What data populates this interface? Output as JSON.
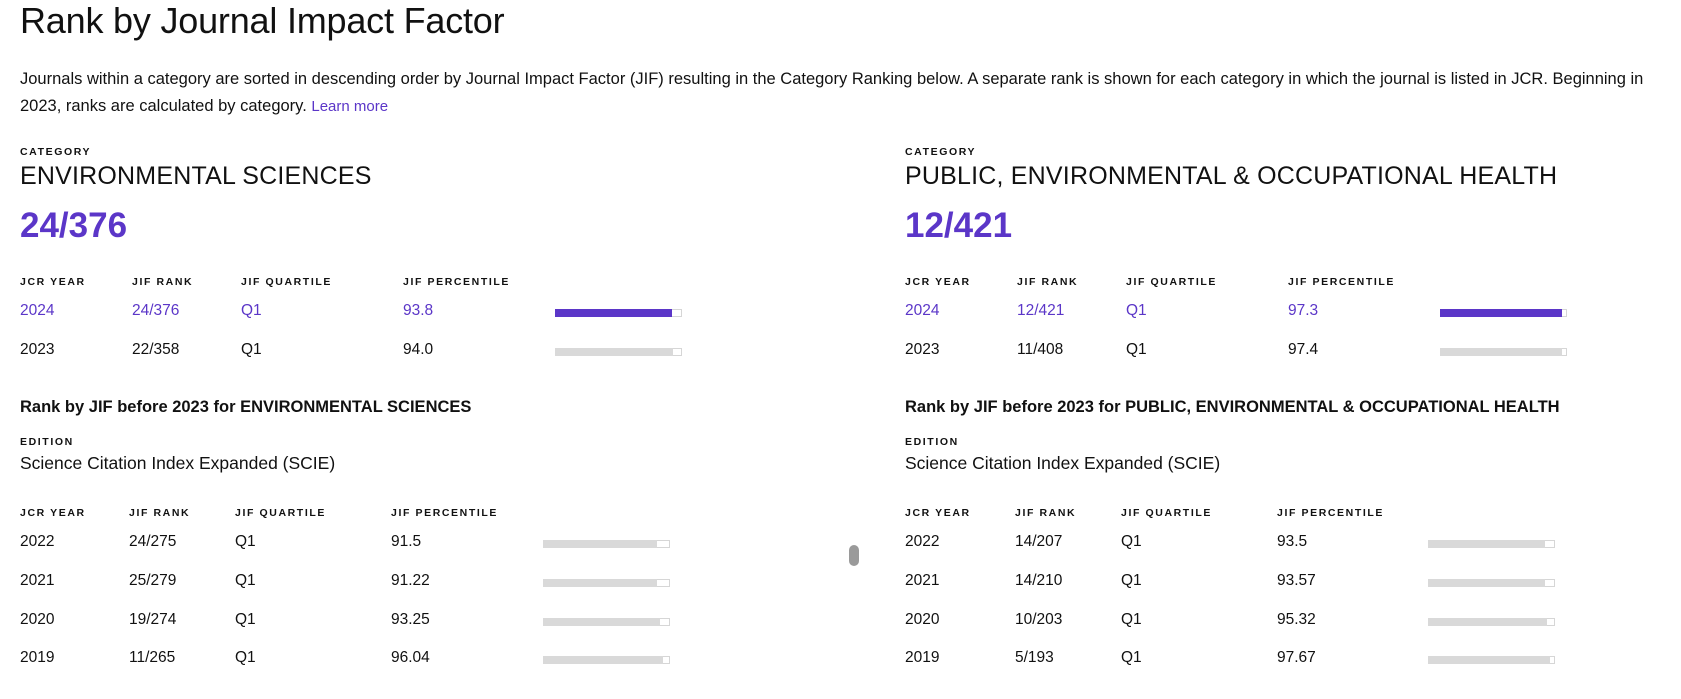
{
  "page": {
    "title": "Rank by Journal Impact Factor",
    "intro_text": "Journals within a category are sorted in descending order by Journal Impact Factor (JIF) resulting in the Category Ranking below. A separate rank is shown for each category in which the journal is listed in JCR. Beginning in 2023, ranks are calculated by category.",
    "learn_more": "Learn more"
  },
  "colors": {
    "accent": "#5b36c8",
    "bar_track": "#d9d9d9",
    "text": "#111111"
  },
  "labels": {
    "category": "CATEGORY",
    "edition": "EDITION",
    "jcr_year": "JCR YEAR",
    "jif_rank": "JIF RANK",
    "jif_quartile": "JIF QUARTILE",
    "jif_percentile": "JIF PERCENTILE"
  },
  "categories": [
    {
      "name": "ENVIRONMENTAL SCIENCES",
      "rank": "24/376",
      "current_rows": [
        {
          "year": "2024",
          "rank": "24/376",
          "quartile": "Q1",
          "percentile": "93.8",
          "pct": 93.8,
          "current": true
        },
        {
          "year": "2023",
          "rank": "22/358",
          "quartile": "Q1",
          "percentile": "94.0",
          "pct": 94.0,
          "current": false
        }
      ],
      "before_heading": "Rank by JIF before 2023 for ENVIRONMENTAL SCIENCES",
      "edition": "Science Citation Index Expanded (SCIE)",
      "before_rows": [
        {
          "year": "2022",
          "rank": "24/275",
          "quartile": "Q1",
          "percentile": "91.5",
          "pct": 91.5
        },
        {
          "year": "2021",
          "rank": "25/279",
          "quartile": "Q1",
          "percentile": "91.22",
          "pct": 91.22
        },
        {
          "year": "2020",
          "rank": "19/274",
          "quartile": "Q1",
          "percentile": "93.25",
          "pct": 93.25
        },
        {
          "year": "2019",
          "rank": "11/265",
          "quartile": "Q1",
          "percentile": "96.04",
          "pct": 96.04
        }
      ]
    },
    {
      "name": "PUBLIC, ENVIRONMENTAL & OCCUPATIONAL HEALTH",
      "rank": "12/421",
      "current_rows": [
        {
          "year": "2024",
          "rank": "12/421",
          "quartile": "Q1",
          "percentile": "97.3",
          "pct": 97.3,
          "current": true
        },
        {
          "year": "2023",
          "rank": "11/408",
          "quartile": "Q1",
          "percentile": "97.4",
          "pct": 97.4,
          "current": false
        }
      ],
      "before_heading": "Rank by JIF before 2023 for PUBLIC, ENVIRONMENTAL & OCCUPATIONAL HEALTH",
      "edition": "Science Citation Index Expanded (SCIE)",
      "before_rows": [
        {
          "year": "2022",
          "rank": "14/207",
          "quartile": "Q1",
          "percentile": "93.5",
          "pct": 93.5
        },
        {
          "year": "2021",
          "rank": "14/210",
          "quartile": "Q1",
          "percentile": "93.57",
          "pct": 93.57
        },
        {
          "year": "2020",
          "rank": "10/203",
          "quartile": "Q1",
          "percentile": "95.32",
          "pct": 95.32
        },
        {
          "year": "2019",
          "rank": "5/193",
          "quartile": "Q1",
          "percentile": "97.67",
          "pct": 97.67
        }
      ]
    }
  ]
}
